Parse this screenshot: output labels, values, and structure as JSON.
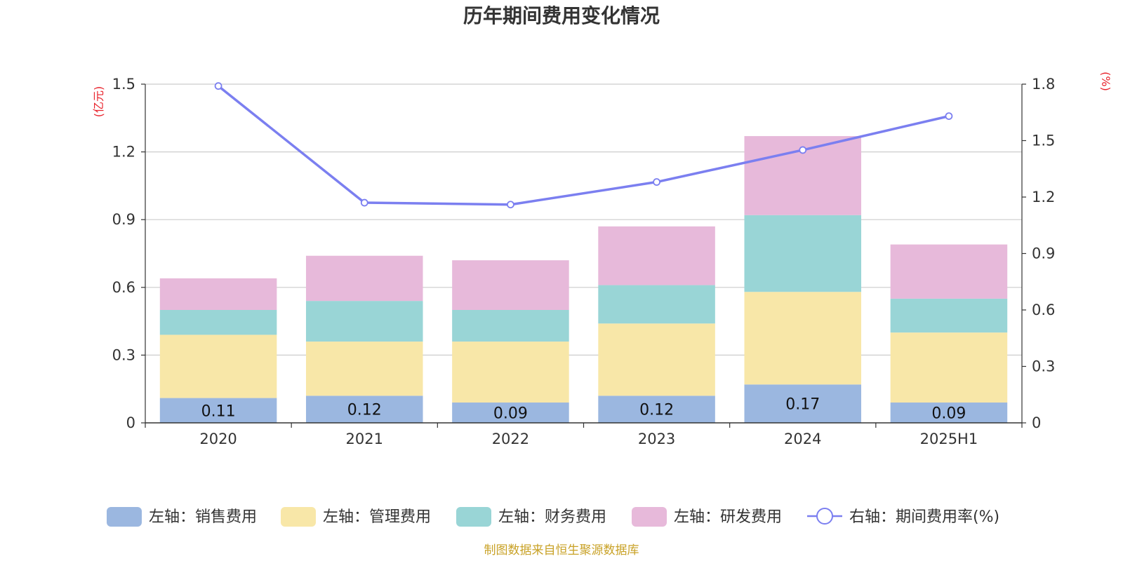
{
  "chart_data": {
    "type": "bar",
    "title": "历年期间费用变化情况",
    "left_axis_unit": "(亿元)",
    "right_axis_unit": "(%)",
    "categories": [
      "2020",
      "2021",
      "2022",
      "2023",
      "2024",
      "2025H1"
    ],
    "stacked": true,
    "ylim_left": [
      0,
      1.5
    ],
    "yticks_left": [
      "0",
      "0.3",
      "0.6",
      "0.9",
      "1.2",
      "1.5"
    ],
    "ylim_right": [
      0,
      1.8
    ],
    "yticks_right": [
      "0",
      "0.3",
      "0.6",
      "0.9",
      "1.2",
      "1.5",
      "1.8"
    ],
    "grid": true,
    "legend_position": "bottom",
    "series": [
      {
        "name": "左轴：销售费用",
        "axis": "left",
        "type": "bar",
        "color": "#9bb7e0",
        "values": [
          0.11,
          0.12,
          0.09,
          0.12,
          0.17,
          0.09
        ],
        "data_labels": [
          "0.11",
          "0.12",
          "0.09",
          "0.12",
          "0.17",
          "0.09"
        ]
      },
      {
        "name": "左轴：管理费用",
        "axis": "left",
        "type": "bar",
        "color": "#f8e7a8",
        "values": [
          0.28,
          0.24,
          0.27,
          0.32,
          0.41,
          0.31
        ]
      },
      {
        "name": "左轴：财务费用",
        "axis": "left",
        "type": "bar",
        "color": "#99d5d6",
        "values": [
          0.11,
          0.18,
          0.14,
          0.17,
          0.34,
          0.15
        ]
      },
      {
        "name": "左轴：研发费用",
        "axis": "left",
        "type": "bar",
        "color": "#e7b9da",
        "values": [
          0.14,
          0.2,
          0.22,
          0.26,
          0.35,
          0.24
        ]
      },
      {
        "name": "右轴：期间费用率(%)",
        "axis": "right",
        "type": "line",
        "color": "#7b7ff0",
        "values": [
          1.79,
          1.17,
          1.16,
          1.28,
          1.45,
          1.63
        ]
      }
    ]
  },
  "source_note": "制图数据来自恒生聚源数据库",
  "colors": {
    "axis_unit": "#e8222b",
    "grid": "#cccccc",
    "axis_line": "#333333"
  }
}
